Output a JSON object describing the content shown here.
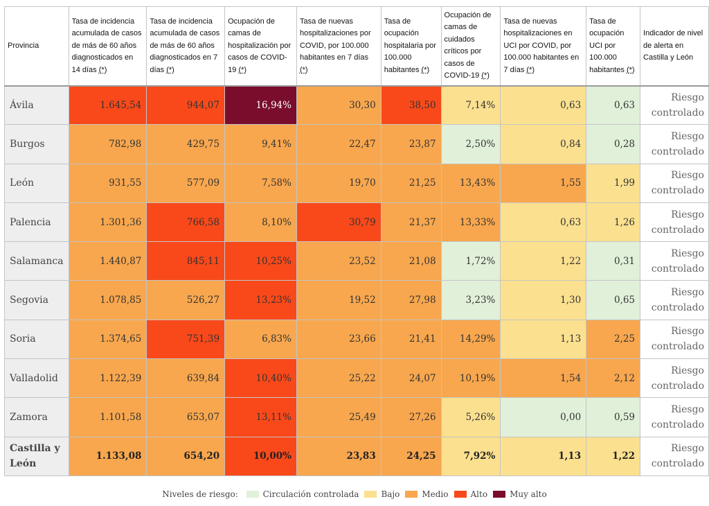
{
  "headers": {
    "province": "Provincia",
    "col1": "Tasa de incidencia acumulada de casos de más de 60 años diagnosticados en 14 días",
    "col2": "Tasa de incidencia acumulada de casos de más de 60 años diagnosticados en 7 días",
    "col3": "Ocupación de camas de hospitalización por casos de COVID-19",
    "col4": "Tasa de nuevas hospitalizaciones por COVID, por 100.000 habitantes en 7 días",
    "col5": "Tasa de ocupación hospitalaria por 100.000 habitantes",
    "col6": "Ocupación de camas de cuidados críticos por casos de COVID-19",
    "col7": "Tasa de nuevas hospitalizaciones en UCI por COVID, por 100.000 habitantes en 7 días",
    "col8": "Tasa de ocupación UCI por 100.000 habitantes",
    "alert": "Indicador de nivel de alerta en Castilla y León",
    "note_mark": "(*)"
  },
  "alert_text": "Riesgo controlado",
  "rows": [
    {
      "province": "Ávila",
      "values": [
        "1.645,54",
        "944,07",
        "16,94%",
        "30,30",
        "38,50",
        "7,14%",
        "0,63",
        "0,63"
      ],
      "levels": [
        "alto",
        "alto",
        "muyalto",
        "medio",
        "alto",
        "bajo",
        "bajo",
        "controlada"
      ]
    },
    {
      "province": "Burgos",
      "values": [
        "782,98",
        "429,75",
        "9,41%",
        "22,47",
        "23,87",
        "2,50%",
        "0,84",
        "0,28"
      ],
      "levels": [
        "medio",
        "medio",
        "medio",
        "medio",
        "medio",
        "controlada",
        "bajo",
        "controlada"
      ]
    },
    {
      "province": "León",
      "values": [
        "931,55",
        "577,09",
        "7,58%",
        "19,70",
        "21,25",
        "13,43%",
        "1,55",
        "1,99"
      ],
      "levels": [
        "medio",
        "medio",
        "medio",
        "medio",
        "medio",
        "medio",
        "medio",
        "bajo"
      ]
    },
    {
      "province": "Palencia",
      "values": [
        "1.301,36",
        "766,58",
        "8,10%",
        "30,79",
        "21,37",
        "13,33%",
        "0,63",
        "1,26"
      ],
      "levels": [
        "medio",
        "alto",
        "medio",
        "alto",
        "medio",
        "medio",
        "bajo",
        "bajo"
      ]
    },
    {
      "province": "Salamanca",
      "values": [
        "1.440,87",
        "845,11",
        "10,25%",
        "23,52",
        "21,08",
        "1,72%",
        "1,22",
        "0,31"
      ],
      "levels": [
        "medio",
        "alto",
        "alto",
        "medio",
        "medio",
        "controlada",
        "bajo",
        "controlada"
      ]
    },
    {
      "province": "Segovia",
      "values": [
        "1.078,85",
        "526,27",
        "13,23%",
        "19,52",
        "27,98",
        "3,23%",
        "1,30",
        "0,65"
      ],
      "levels": [
        "medio",
        "medio",
        "alto",
        "medio",
        "medio",
        "controlada",
        "bajo",
        "controlada"
      ]
    },
    {
      "province": "Soria",
      "values": [
        "1.374,65",
        "751,39",
        "6,83%",
        "23,66",
        "21,41",
        "14,29%",
        "1,13",
        "2,25"
      ],
      "levels": [
        "medio",
        "alto",
        "medio",
        "medio",
        "medio",
        "medio",
        "bajo",
        "medio"
      ]
    },
    {
      "province": "Valladolid",
      "values": [
        "1.122,39",
        "639,84",
        "10,40%",
        "25,22",
        "24,07",
        "10,19%",
        "1,54",
        "2,12"
      ],
      "levels": [
        "medio",
        "medio",
        "alto",
        "medio",
        "medio",
        "medio",
        "medio",
        "medio"
      ]
    },
    {
      "province": "Zamora",
      "values": [
        "1.101,58",
        "653,07",
        "13,11%",
        "25,49",
        "27,26",
        "5,26%",
        "0,00",
        "0,59"
      ],
      "levels": [
        "medio",
        "medio",
        "alto",
        "medio",
        "medio",
        "bajo",
        "controlada",
        "controlada"
      ]
    },
    {
      "province": "Castilla y León",
      "values": [
        "1.133,08",
        "654,20",
        "10,00%",
        "23,83",
        "24,25",
        "7,92%",
        "1,13",
        "1,22"
      ],
      "levels": [
        "medio",
        "medio",
        "alto",
        "medio",
        "medio",
        "bajo",
        "bajo",
        "bajo"
      ],
      "total": true
    }
  ],
  "legend": {
    "title": "Niveles de riesgo:",
    "items": [
      {
        "label": "Circulación controlada",
        "color": "#e1f0d9"
      },
      {
        "label": "Bajo",
        "color": "#fbe08f"
      },
      {
        "label": "Medio",
        "color": "#f8a74e"
      },
      {
        "label": "Alto",
        "color": "#f9491a"
      },
      {
        "label": "Muy alto",
        "color": "#7a0c2c"
      }
    ]
  },
  "colors": {
    "controlada": "#e1f0d9",
    "bajo": "#fbe08f",
    "medio": "#f8a74e",
    "alto": "#f9491a",
    "muyalto": "#7a0c2c"
  }
}
